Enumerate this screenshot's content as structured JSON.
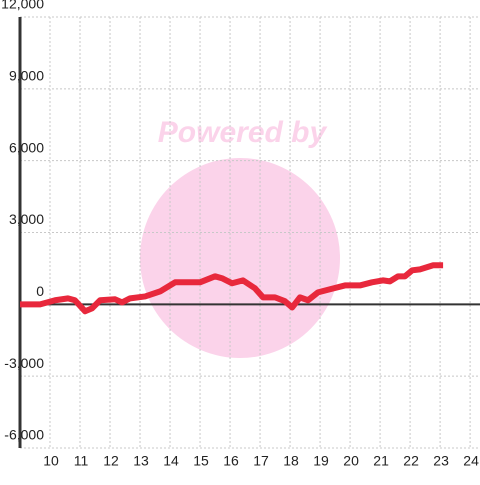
{
  "chart_data": {
    "type": "line",
    "watermark": "Powered by",
    "x": [
      9.0,
      9.67,
      10.17,
      10.6,
      10.83,
      11.17,
      11.4,
      11.67,
      12.17,
      12.4,
      12.67,
      13.17,
      13.67,
      14.17,
      15.0,
      15.5,
      15.73,
      16.07,
      16.43,
      16.83,
      17.1,
      17.5,
      17.83,
      18.07,
      18.33,
      18.6,
      18.93,
      19.33,
      19.83,
      20.33,
      20.73,
      21.1,
      21.33,
      21.6,
      21.83,
      22.07,
      22.33,
      22.77,
      23.1
    ],
    "series": [
      {
        "color": "#e8283c",
        "values": [
          0,
          0,
          170,
          250,
          170,
          -290,
          -170,
          170,
          210,
          80,
          250,
          330,
          540,
          920,
          920,
          1170,
          1090,
          880,
          1000,
          670,
          290,
          290,
          130,
          -130,
          290,
          170,
          500,
          630,
          790,
          790,
          920,
          1000,
          960,
          1170,
          1170,
          1420,
          1460,
          1630,
          1630
        ]
      }
    ],
    "xlim": [
      9,
      24.33
    ],
    "xticks": [
      10,
      11,
      12,
      13,
      14,
      15,
      16,
      17,
      18,
      19,
      20,
      21,
      22,
      23,
      24
    ],
    "ylim": [
      -6000,
      12000
    ],
    "yticks": [
      {
        "value": -6000,
        "label": "-6,000"
      },
      {
        "value": -3000,
        "label": "-3,000"
      },
      0,
      {
        "value": 3000,
        "label": "3,000"
      },
      {
        "value": 6000,
        "label": "6,000"
      },
      {
        "value": 9000,
        "label": "9,000"
      },
      {
        "value": 12000,
        "label": "12,000"
      }
    ],
    "grid": true
  }
}
